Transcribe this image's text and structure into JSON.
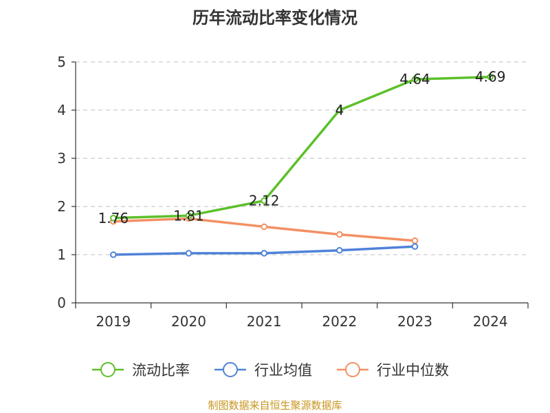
{
  "chart_data": {
    "type": "line",
    "title": "历年流动比率变化情况",
    "categories": [
      "2019",
      "2020",
      "2021",
      "2022",
      "2023",
      "2024"
    ],
    "ylim": [
      0,
      5
    ],
    "yticks": [
      "0",
      "1",
      "2",
      "3",
      "4",
      "5"
    ],
    "grid": true,
    "legend_position": "bottom",
    "series": [
      {
        "name": "流动比率",
        "color": "#5cc02a",
        "values": [
          1.76,
          1.81,
          2.12,
          4,
          4.64,
          4.69
        ],
        "labels": [
          "1.76",
          "1.81",
          "2.12",
          "4",
          "4.64",
          "4.69"
        ]
      },
      {
        "name": "行业均值",
        "color": "#4f82d8",
        "values": [
          1.0,
          1.03,
          1.03,
          1.09,
          1.17,
          null
        ]
      },
      {
        "name": "行业中位数",
        "color": "#f39063",
        "values": [
          1.69,
          1.75,
          1.58,
          1.42,
          1.29,
          null
        ]
      }
    ]
  },
  "footer": "制图数据来自恒生聚源数据库"
}
